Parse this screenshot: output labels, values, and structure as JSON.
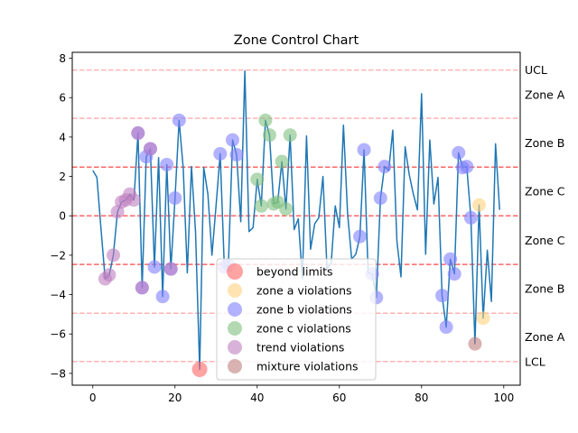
{
  "chart_data": {
    "type": "line",
    "title": "Zone Control Chart",
    "xlabel": "",
    "ylabel": "",
    "xlim": [
      -5,
      104
    ],
    "ylim": [
      -8.6,
      8.3
    ],
    "xticks": [
      0,
      20,
      40,
      60,
      80,
      100
    ],
    "yticks": [
      -8,
      -6,
      -4,
      -2,
      0,
      2,
      4,
      6,
      8
    ],
    "grid": false,
    "legend_position": "lower-center",
    "series": [
      {
        "values": [
          2.3,
          1.95,
          -0.7,
          -3.2,
          -3.0,
          -2.0,
          0.2,
          0.7,
          0.8,
          1.1,
          0.8,
          4.2,
          -3.65,
          3.0,
          3.4,
          -2.6,
          2.95,
          -4.1,
          2.6,
          -2.7,
          0.9,
          4.85,
          2.4,
          -2.9,
          2.5,
          -0.8,
          -7.8,
          2.45,
          1.1,
          -2.0,
          0.55,
          3.15,
          -2.6,
          -2.5,
          3.85,
          3.1,
          -0.3,
          7.35,
          -0.8,
          -0.6,
          1.85,
          0.5,
          4.85,
          4.1,
          0.6,
          0.7,
          2.75,
          0.35,
          4.1,
          -0.7,
          -0.15,
          -3.2,
          4.05,
          -1.7,
          -0.4,
          -0.1,
          2.0,
          -2.7,
          -2.4,
          0.5,
          -0.6,
          4.6,
          0.1,
          -2.2,
          -1.95,
          -1.05,
          3.35,
          -2.9,
          -2.95,
          -4.15,
          0.9,
          2.5,
          2.3,
          4.35,
          -1.3,
          -3.1,
          3.5,
          2.1,
          1.1,
          0.3,
          6.2,
          -1.95,
          3.85,
          0.6,
          1.95,
          -4.05,
          -5.65,
          -2.2,
          -2.95,
          3.2,
          2.45,
          2.5,
          -0.1,
          -6.5,
          0.55,
          -5.2,
          -1.75,
          -4.35,
          3.65,
          0.3
        ]
      }
    ],
    "control_lines": [
      {
        "value": 7.4,
        "style": "dashed",
        "color": "#ffb3b3"
      },
      {
        "value": 4.95,
        "style": "dashed",
        "color": "#ffb3b3"
      },
      {
        "value": 2.47,
        "style": "dashed",
        "color": "#ff6666"
      },
      {
        "value": 0,
        "style": "dashed",
        "color": "#ff6666"
      },
      {
        "value": -2.47,
        "style": "dashed",
        "color": "#ff6666"
      },
      {
        "value": -4.95,
        "style": "dashed",
        "color": "#ffb3b3"
      },
      {
        "value": -7.4,
        "style": "dashed",
        "color": "#ffb3b3"
      }
    ],
    "zone_labels": [
      {
        "label": "UCL",
        "y": 7.4
      },
      {
        "label": "Zone A",
        "y": 6.15
      },
      {
        "label": "Zone B",
        "y": 3.7
      },
      {
        "label": "Zone C",
        "y": 1.25
      },
      {
        "label": "Zone C",
        "y": -1.25
      },
      {
        "label": "Zone B",
        "y": -3.7
      },
      {
        "label": "Zone A",
        "y": -6.15
      },
      {
        "label": "LCL",
        "y": -7.4
      }
    ],
    "violation_groups": [
      {
        "name": "beyond limits",
        "color": "#ff6666",
        "indices": [
          26
        ]
      },
      {
        "name": "zone a violations",
        "color": "#ffd27f",
        "indices": [
          94,
          95
        ]
      },
      {
        "name": "zone b violations",
        "color": "#7f7fff",
        "indices": [
          11,
          12,
          13,
          14,
          15,
          17,
          18,
          19,
          20,
          21,
          31,
          32,
          33,
          34,
          35,
          65,
          66,
          68,
          69,
          70,
          71,
          85,
          86,
          87,
          88,
          89,
          90,
          91,
          92
        ]
      },
      {
        "name": "zone c violations",
        "color": "#7fbf7f",
        "indices": [
          40,
          41,
          42,
          43,
          44,
          45,
          46,
          47,
          48
        ]
      },
      {
        "name": "trend violations",
        "color": "#bf7fbf",
        "indices": [
          3,
          4,
          5,
          6,
          7,
          8,
          9,
          10,
          11,
          12,
          14,
          19
        ]
      },
      {
        "name": "mixture violations",
        "color": "#bf7f7f",
        "indices": [
          93
        ]
      }
    ],
    "line_color": "#1f77b4"
  }
}
